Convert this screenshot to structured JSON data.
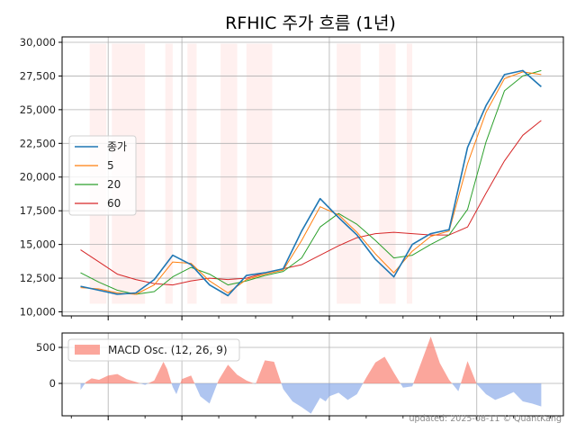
{
  "chart_data": [
    {
      "type": "line",
      "title": "RFHIC 주가 흐름 (1년)",
      "ylim": [
        10000,
        30000
      ],
      "yticks": [
        10000,
        12500,
        15000,
        17500,
        20000,
        22500,
        25000,
        27500,
        30000
      ],
      "ytick_labels": [
        "10,000",
        "12,500",
        "15,000",
        "17,500",
        "20,000",
        "22,500",
        "25,000",
        "27,500",
        "30,000"
      ],
      "grid": true,
      "legend_position": "center-left",
      "x": [
        0,
        10,
        20,
        30,
        40,
        50,
        60,
        70,
        80,
        90,
        100,
        110,
        120,
        130,
        140,
        150,
        160,
        170,
        180,
        190,
        200,
        210,
        220,
        230,
        240,
        250
      ],
      "series": [
        {
          "name": "종가",
          "color": "#1f77b4",
          "values": [
            11900,
            11600,
            11300,
            11400,
            12400,
            14200,
            13500,
            12000,
            11200,
            12700,
            12900,
            13200,
            16000,
            18400,
            17000,
            15700,
            13900,
            12600,
            15000,
            15800,
            16100,
            22200,
            25300,
            27600,
            27900,
            26700
          ]
        },
        {
          "name": "5",
          "color": "#ff7f0e",
          "values": [
            11800,
            11700,
            11400,
            11300,
            12000,
            13700,
            13600,
            12300,
            11400,
            12400,
            12800,
            13100,
            15300,
            17800,
            17200,
            15900,
            14300,
            12900,
            14500,
            15600,
            16000,
            21000,
            24800,
            27300,
            27800,
            27600
          ]
        },
        {
          "name": "20",
          "color": "#2ca02c",
          "values": [
            12900,
            12200,
            11600,
            11300,
            11500,
            12600,
            13300,
            12800,
            12000,
            12300,
            12700,
            13000,
            14000,
            16300,
            17300,
            16500,
            15300,
            14000,
            14200,
            15000,
            15700,
            17600,
            22600,
            26400,
            27500,
            27900
          ]
        },
        {
          "name": "60",
          "color": "#d62728",
          "values": [
            14600,
            13700,
            12800,
            12400,
            12100,
            12000,
            12300,
            12500,
            12400,
            12500,
            12900,
            13200,
            13500,
            14200,
            14900,
            15500,
            15800,
            15900,
            15800,
            15700,
            15700,
            16300,
            18800,
            21200,
            23100,
            24200
          ]
        }
      ],
      "shaded_ranges": [
        [
          5,
          14
        ],
        [
          17,
          35
        ],
        [
          46,
          50
        ],
        [
          58,
          63
        ],
        [
          76,
          85
        ],
        [
          90,
          104
        ],
        [
          139,
          152
        ],
        [
          162,
          171
        ],
        [
          177,
          180
        ]
      ]
    },
    {
      "type": "area",
      "ylim": [
        -450,
        700
      ],
      "yticks": [
        0,
        500
      ],
      "ytick_labels": [
        "0",
        "500"
      ],
      "grid": true,
      "legend_position": "top-left",
      "series": [
        {
          "name": "MACD Osc. (12, 26, 9)",
          "positive_color": "#fa8072",
          "negative_color": "#7a9fe6",
          "x": [
            0,
            3,
            6,
            10,
            15,
            20,
            25,
            30,
            35,
            40,
            45,
            47,
            50,
            52,
            55,
            60,
            65,
            70,
            75,
            80,
            85,
            90,
            95,
            100,
            105,
            110,
            115,
            120,
            125,
            130,
            133,
            135,
            140,
            145,
            150,
            155,
            160,
            165,
            170,
            175,
            180,
            185,
            190,
            195,
            200,
            205,
            210,
            215,
            220,
            225,
            230,
            235,
            240,
            245,
            250
          ],
          "values": [
            -90,
            20,
            70,
            50,
            110,
            130,
            60,
            20,
            -20,
            40,
            300,
            200,
            -50,
            -150,
            60,
            110,
            -180,
            -280,
            50,
            260,
            120,
            40,
            -10,
            320,
            300,
            -80,
            -250,
            -330,
            -420,
            -200,
            -250,
            -180,
            -130,
            -230,
            -150,
            80,
            290,
            370,
            150,
            -60,
            -40,
            300,
            650,
            280,
            50,
            -110,
            310,
            -10,
            -150,
            -230,
            -180,
            -120,
            -250,
            -280,
            -320
          ]
        }
      ]
    }
  ],
  "footer": "updated: 2025-08-11 © QuantKang"
}
